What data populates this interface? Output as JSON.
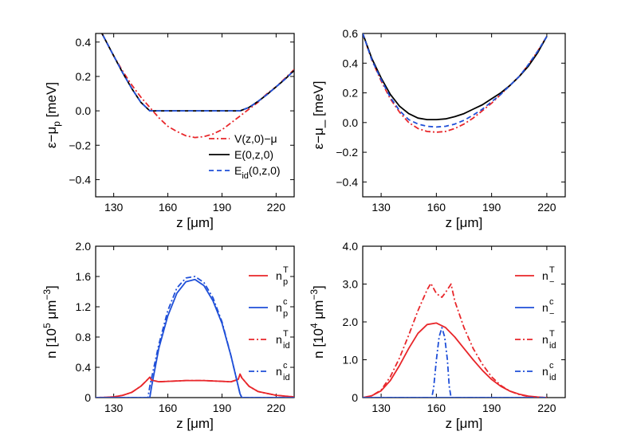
{
  "chart_data": [
    {
      "id": "top-left",
      "type": "line",
      "xlabel": "z [μm]",
      "ylabel": "ε−μ",
      "ylabel_sub": "p",
      "ylabel_unit": " [meV]",
      "xlim": [
        120,
        230
      ],
      "ylim": [
        -0.5,
        0.45
      ],
      "xticks": [
        130,
        160,
        190,
        220
      ],
      "yticks": [
        -0.4,
        -0.2,
        0.0,
        0.2,
        0.4
      ],
      "ytick_labels": [
        "−0.4",
        "−0.2",
        "0.0",
        "0.2",
        "0.4"
      ],
      "legend_position": "bottom-right",
      "series": [
        {
          "name": "V(z,0)−μ",
          "color": "#e8262a",
          "dash": "7,3,2,3",
          "x": [
            120,
            125,
            130,
            135,
            140,
            145,
            150,
            155,
            160,
            165,
            170,
            175,
            180,
            185,
            190,
            195,
            200,
            205,
            210,
            215,
            220,
            225,
            230
          ],
          "y": [
            0.52,
            0.42,
            0.32,
            0.23,
            0.15,
            0.08,
            0.02,
            -0.04,
            -0.09,
            -0.12,
            -0.145,
            -0.155,
            -0.15,
            -0.135,
            -0.11,
            -0.07,
            -0.03,
            0.01,
            0.05,
            0.1,
            0.14,
            0.19,
            0.24
          ]
        },
        {
          "name": "E(0,z,0)",
          "color": "#000000",
          "dash": "",
          "x": [
            120,
            125,
            130,
            135,
            140,
            145,
            150,
            160,
            170,
            180,
            190,
            200,
            205,
            210,
            215,
            220,
            225,
            230
          ],
          "y": [
            0.52,
            0.42,
            0.32,
            0.22,
            0.13,
            0.05,
            0.0,
            0.0,
            0.0,
            0.0,
            0.0,
            0.0,
            0.02,
            0.055,
            0.095,
            0.14,
            0.185,
            0.235
          ]
        },
        {
          "name": "E",
          "name_sub": "id",
          "name_tail": "(0,z,0)",
          "color": "#1f4fd8",
          "dash": "6,4",
          "x": [
            120,
            125,
            130,
            135,
            140,
            145,
            150,
            160,
            170,
            180,
            190,
            200,
            205,
            210,
            215,
            220,
            225,
            230
          ],
          "y": [
            0.52,
            0.42,
            0.32,
            0.22,
            0.13,
            0.05,
            0.0,
            0.0,
            0.0,
            0.0,
            0.0,
            0.0,
            0.02,
            0.055,
            0.095,
            0.14,
            0.185,
            0.235
          ]
        }
      ]
    },
    {
      "id": "top-right",
      "type": "line",
      "xlabel": "z [μm]",
      "ylabel": "ε−μ_",
      "ylabel_sub": "",
      "ylabel_unit": " [meV]",
      "xlim": [
        120,
        230
      ],
      "ylim": [
        -0.5,
        0.6
      ],
      "xticks": [
        130,
        160,
        190,
        220
      ],
      "yticks": [
        -0.4,
        -0.2,
        0.0,
        0.2,
        0.4,
        0.6
      ],
      "ytick_labels": [
        "−0.4",
        "−0.2",
        "0.0",
        "0.2",
        "0.4",
        "0.6"
      ],
      "series": [
        {
          "name": "V",
          "color": "#e8262a",
          "dash": "7,3,2,3",
          "x": [
            120,
            125,
            130,
            135,
            140,
            145,
            150,
            155,
            160,
            165,
            170,
            175,
            180,
            185,
            190,
            195,
            200,
            205,
            210,
            215,
            220
          ],
          "y": [
            0.6,
            0.42,
            0.28,
            0.16,
            0.07,
            0.0,
            -0.04,
            -0.06,
            -0.065,
            -0.06,
            -0.04,
            -0.01,
            0.03,
            0.08,
            0.13,
            0.19,
            0.25,
            0.31,
            0.39,
            0.48,
            0.58
          ]
        },
        {
          "name": "E",
          "color": "#000000",
          "dash": "",
          "x": [
            120,
            125,
            130,
            135,
            140,
            145,
            150,
            155,
            160,
            165,
            170,
            175,
            180,
            185,
            190,
            195,
            200,
            205,
            210,
            215,
            220
          ],
          "y": [
            0.6,
            0.43,
            0.3,
            0.19,
            0.11,
            0.06,
            0.03,
            0.02,
            0.02,
            0.025,
            0.04,
            0.06,
            0.09,
            0.12,
            0.16,
            0.2,
            0.25,
            0.31,
            0.38,
            0.47,
            0.58
          ]
        },
        {
          "name": "Eid",
          "color": "#1f4fd8",
          "dash": "6,4",
          "x": [
            120,
            125,
            130,
            135,
            140,
            145,
            150,
            155,
            160,
            165,
            170,
            175,
            180,
            185,
            190,
            195,
            200,
            205,
            210,
            215,
            220
          ],
          "y": [
            0.6,
            0.42,
            0.29,
            0.17,
            0.08,
            0.02,
            -0.01,
            -0.025,
            -0.03,
            -0.025,
            -0.01,
            0.015,
            0.05,
            0.09,
            0.14,
            0.19,
            0.25,
            0.31,
            0.39,
            0.48,
            0.58
          ]
        }
      ]
    },
    {
      "id": "bottom-left",
      "type": "line",
      "xlabel": "z [μm]",
      "ylabel": "n [10",
      "ylabel_sup": "5",
      "ylabel_mid": " μm",
      "ylabel_sup2": "−3",
      "ylabel_end": "]",
      "xlim": [
        120,
        230
      ],
      "ylim": [
        0,
        2.0
      ],
      "xticks": [
        130,
        160,
        190,
        220
      ],
      "yticks": [
        0,
        0.4,
        0.8,
        1.2,
        1.6,
        2.0
      ],
      "ytick_labels": [
        "0",
        "0.4",
        "0.8",
        "1.2",
        "1.6",
        "2.0"
      ],
      "legend_position": "top-right",
      "series": [
        {
          "name": "n",
          "name_sub": "p",
          "name_sup": "T",
          "color": "#e8262a",
          "dash": "",
          "x": [
            120,
            125,
            130,
            135,
            140,
            145,
            148,
            150,
            151,
            155,
            160,
            170,
            180,
            190,
            195,
            199,
            200,
            201,
            205,
            210,
            220,
            230
          ],
          "y": [
            0.0,
            0.003,
            0.01,
            0.03,
            0.07,
            0.15,
            0.22,
            0.27,
            0.23,
            0.21,
            0.215,
            0.225,
            0.225,
            0.215,
            0.21,
            0.24,
            0.31,
            0.26,
            0.15,
            0.08,
            0.03,
            0.01
          ]
        },
        {
          "name": "n",
          "name_sub": "p",
          "name_sup": "c",
          "color": "#1f4fd8",
          "dash": "",
          "x": [
            120,
            150,
            151,
            155,
            160,
            165,
            170,
            175,
            180,
            185,
            190,
            195,
            200,
            201,
            230
          ],
          "y": [
            0,
            0,
            0.15,
            0.65,
            1.08,
            1.38,
            1.53,
            1.56,
            1.48,
            1.28,
            0.98,
            0.55,
            0.05,
            0,
            0
          ]
        },
        {
          "name": "n",
          "name_sub": "id",
          "name_sup": "T",
          "color": "#e8262a",
          "dash": "7,3,2,3",
          "x": [
            120,
            125,
            130,
            135,
            140,
            145,
            148,
            150,
            151,
            155,
            160,
            170,
            180,
            190,
            195,
            199,
            200,
            201,
            205,
            210,
            220,
            230
          ],
          "y": [
            0.0,
            0.003,
            0.01,
            0.03,
            0.07,
            0.15,
            0.22,
            0.27,
            0.23,
            0.21,
            0.215,
            0.225,
            0.225,
            0.215,
            0.21,
            0.24,
            0.31,
            0.26,
            0.15,
            0.08,
            0.03,
            0.01
          ]
        },
        {
          "name": "n",
          "name_sub": "id",
          "name_sup": "c",
          "color": "#1f4fd8",
          "dash": "7,3,2,3",
          "x": [
            120,
            149,
            150,
            155,
            160,
            165,
            170,
            175,
            180,
            185,
            190,
            195,
            200,
            201,
            230
          ],
          "y": [
            0,
            0,
            0.15,
            0.7,
            1.15,
            1.45,
            1.58,
            1.6,
            1.52,
            1.32,
            1.0,
            0.55,
            0.05,
            0,
            0
          ]
        }
      ]
    },
    {
      "id": "bottom-right",
      "type": "line",
      "xlabel": "z [μm]",
      "ylabel": "n [10",
      "ylabel_sup": "4",
      "ylabel_mid": " μm",
      "ylabel_sup2": "−3",
      "ylabel_end": "]",
      "xlim": [
        120,
        230
      ],
      "ylim": [
        0,
        4.0
      ],
      "xticks": [
        130,
        160,
        190,
        220
      ],
      "yticks": [
        0,
        1.0,
        2.0,
        3.0,
        4.0
      ],
      "ytick_labels": [
        "0",
        "1.0",
        "2.0",
        "3.0",
        "4.0"
      ],
      "legend_position": "top-right",
      "series": [
        {
          "name": "n",
          "name_sub": "−",
          "name_sup": "T",
          "color": "#e8262a",
          "dash": "",
          "x": [
            120,
            125,
            130,
            135,
            140,
            145,
            150,
            155,
            160,
            165,
            170,
            175,
            180,
            185,
            190,
            195,
            200,
            205,
            210,
            215,
            220
          ],
          "y": [
            0.0,
            0.05,
            0.18,
            0.45,
            0.85,
            1.3,
            1.7,
            1.93,
            1.97,
            1.85,
            1.6,
            1.3,
            1.0,
            0.72,
            0.48,
            0.3,
            0.17,
            0.09,
            0.04,
            0.015,
            0.0
          ]
        },
        {
          "name": "n",
          "name_sub": "−",
          "name_sup": "c",
          "color": "#1f4fd8",
          "dash": "",
          "x": [
            120,
            220
          ],
          "y": [
            0,
            0
          ]
        },
        {
          "name": "n",
          "name_sub": "id",
          "name_sup": "T",
          "color": "#e8262a",
          "dash": "7,3,2,3",
          "x": [
            120,
            125,
            130,
            135,
            140,
            145,
            150,
            155,
            157,
            160,
            163,
            165,
            168,
            170,
            175,
            180,
            185,
            190,
            195,
            200,
            205,
            210,
            215,
            220
          ],
          "y": [
            0.0,
            0.05,
            0.2,
            0.55,
            1.05,
            1.65,
            2.3,
            2.85,
            3.02,
            2.75,
            2.65,
            2.78,
            3.0,
            2.55,
            1.85,
            1.3,
            0.88,
            0.55,
            0.32,
            0.17,
            0.08,
            0.03,
            0.01,
            0.0
          ]
        },
        {
          "name": "n",
          "name_sub": "id",
          "name_sup": "c",
          "color": "#1f4fd8",
          "dash": "7,3,2,3",
          "x": [
            120,
            157.5,
            158.5,
            160,
            161.5,
            163,
            164.5,
            166,
            167,
            168,
            220
          ],
          "y": [
            0,
            0,
            0.25,
            1.0,
            1.6,
            1.85,
            1.6,
            1.0,
            0.3,
            0,
            0
          ]
        }
      ]
    }
  ]
}
